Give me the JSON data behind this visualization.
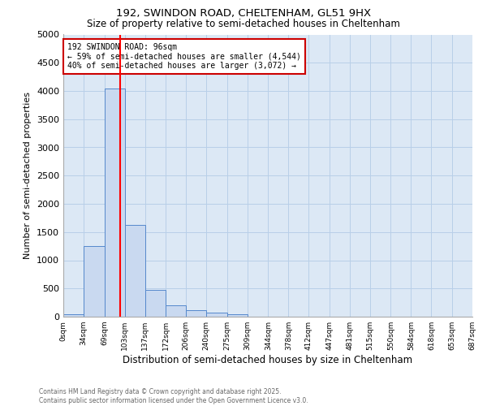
{
  "title1": "192, SWINDON ROAD, CHELTENHAM, GL51 9HX",
  "title2": "Size of property relative to semi-detached houses in Cheltenham",
  "xlabel": "Distribution of semi-detached houses by size in Cheltenham",
  "ylabel": "Number of semi-detached properties",
  "bar_edges": [
    0,
    34,
    69,
    103,
    137,
    172,
    206,
    240,
    275,
    309,
    344,
    378,
    412,
    447,
    481,
    515,
    550,
    584,
    618,
    653,
    687
  ],
  "bar_heights": [
    40,
    1250,
    4050,
    1630,
    470,
    195,
    110,
    65,
    50,
    0,
    0,
    0,
    0,
    0,
    0,
    0,
    0,
    0,
    0,
    0
  ],
  "bar_color": "#c9d9f0",
  "bar_edge_color": "#5588cc",
  "red_line_x": 96,
  "ylim": [
    0,
    5000
  ],
  "yticks": [
    0,
    500,
    1000,
    1500,
    2000,
    2500,
    3000,
    3500,
    4000,
    4500,
    5000
  ],
  "xtick_labels": [
    "0sqm",
    "34sqm",
    "69sqm",
    "103sqm",
    "137sqm",
    "172sqm",
    "206sqm",
    "240sqm",
    "275sqm",
    "309sqm",
    "344sqm",
    "378sqm",
    "412sqm",
    "447sqm",
    "481sqm",
    "515sqm",
    "550sqm",
    "584sqm",
    "618sqm",
    "653sqm",
    "687sqm"
  ],
  "annotation_title": "192 SWINDON ROAD: 96sqm",
  "annotation_line1": "← 59% of semi-detached houses are smaller (4,544)",
  "annotation_line2": "40% of semi-detached houses are larger (3,072) →",
  "annotation_box_color": "#ffffff",
  "annotation_box_edge": "#cc0000",
  "footnote1": "Contains HM Land Registry data © Crown copyright and database right 2025.",
  "footnote2": "Contains public sector information licensed under the Open Government Licence v3.0.",
  "background_color": "#ffffff",
  "axes_bg_color": "#dce8f5",
  "grid_color": "#b8cfe8"
}
